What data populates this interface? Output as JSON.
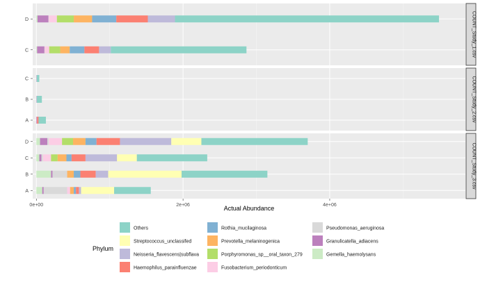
{
  "chart_data": {
    "type": "bar",
    "orientation": "horizontal",
    "stacked": true,
    "xlabel": "Actual Abundance",
    "x_ticks": [
      {
        "value": 0,
        "label": "0e+00"
      },
      {
        "value": 2000000,
        "label": "2e+06"
      },
      {
        "value": 4000000,
        "label": "4e+06"
      }
    ],
    "xlim": [
      -50000,
      5850000
    ],
    "grid": true,
    "legend_title": "Phylum",
    "legend_position": "bottom",
    "taxa": [
      {
        "name": "Gemella_haemolysans",
        "color": "#ccebc5"
      },
      {
        "name": "Granulicatella_adiacens",
        "color": "#bc80bd"
      },
      {
        "name": "Pseudomonas_aeruginosa",
        "color": "#d9d9d9"
      },
      {
        "name": "Fusobacterium_periodonticum",
        "color": "#fccde5"
      },
      {
        "name": "Porphyromonas_sp__oral_taxon_279",
        "color": "#b3de69"
      },
      {
        "name": "Prevotella_melaninogenica",
        "color": "#fdb462"
      },
      {
        "name": "Rothia_mucilaginosa",
        "color": "#80b1d3"
      },
      {
        "name": "Haemophilus_parainfluenzae",
        "color": "#fb8072"
      },
      {
        "name": "Neisseria_flavescens|subflava",
        "color": "#bebada"
      },
      {
        "name": "Streptococcus_unclassifed",
        "color": "#ffffb3"
      },
      {
        "name": "Others",
        "color": "#8dd3c7"
      }
    ],
    "legend_columns": [
      [
        "Others",
        "Streptococcus_unclassifed",
        "Neisseria_flavescens|subflava",
        "Haemophilus_parainfluenzae"
      ],
      [
        "Rothia_mucilaginosa",
        "Prevotella_melaninogenica",
        "Porphyromonas_sp__oral_taxon_279",
        "Fusobacterium_periodonticum"
      ],
      [
        "Pseudomonas_aeruginosa",
        "Granulicatella_adiacens",
        "Gemella_haemolysans"
      ]
    ],
    "panels": [
      {
        "label": "COUNT_Study_1.csv",
        "categories": [
          "C",
          "D"
        ],
        "bars": {
          "D": {
            "Gemella_haemolysans": 15000,
            "Granulicatella_adiacens": 150000,
            "Pseudomonas_aeruginosa": 5000,
            "Fusobacterium_periodonticum": 110000,
            "Porphyromonas_sp__oral_taxon_279": 230000,
            "Prevotella_melaninogenica": 250000,
            "Rothia_mucilaginosa": 330000,
            "Haemophilus_parainfluenzae": 430000,
            "Neisseria_flavescens|subflava": 370000,
            "Streptococcus_unclassifed": 0,
            "Others": 3600000
          },
          "C": {
            "Gemella_haemolysans": 10000,
            "Granulicatella_adiacens": 100000,
            "Pseudomonas_aeruginosa": 5000,
            "Fusobacterium_periodonticum": 60000,
            "Porphyromonas_sp__oral_taxon_279": 150000,
            "Prevotella_melaninogenica": 130000,
            "Rothia_mucilaginosa": 200000,
            "Haemophilus_parainfluenzae": 200000,
            "Neisseria_flavescens|subflava": 160000,
            "Streptococcus_unclassifed": 0,
            "Others": 1850000
          }
        }
      },
      {
        "label": "COUNT_Study_2.csv",
        "categories": [
          "A",
          "B",
          "C"
        ],
        "bars": {
          "C": {
            "Granulicatella_adiacens": 5000,
            "Others": 35000
          },
          "B": {
            "Granulicatella_adiacens": 5000,
            "Others": 70000
          },
          "A": {
            "Granulicatella_adiacens": 10000,
            "Haemophilus_parainfluenzae": 20000,
            "Others": 100000
          }
        }
      },
      {
        "label": "COUNT_Study_3.csv",
        "categories": [
          "A",
          "B",
          "C",
          "D"
        ],
        "bars": {
          "D": {
            "Gemella_haemolysans": 50000,
            "Granulicatella_adiacens": 100000,
            "Pseudomonas_aeruginosa": 20000,
            "Fusobacterium_periodonticum": 180000,
            "Porphyromonas_sp__oral_taxon_279": 150000,
            "Prevotella_melaninogenica": 170000,
            "Rothia_mucilaginosa": 150000,
            "Haemophilus_parainfluenzae": 320000,
            "Neisseria_flavescens|subflava": 700000,
            "Streptococcus_unclassifed": 410000,
            "Others": 1450000
          },
          "C": {
            "Gemella_haemolysans": 40000,
            "Granulicatella_adiacens": 30000,
            "Pseudomonas_aeruginosa": 20000,
            "Fusobacterium_periodonticum": 110000,
            "Porphyromonas_sp__oral_taxon_279": 90000,
            "Prevotella_melaninogenica": 120000,
            "Rothia_mucilaginosa": 70000,
            "Haemophilus_parainfluenzae": 190000,
            "Neisseria_flavescens|subflava": 430000,
            "Streptococcus_unclassifed": 270000,
            "Others": 960000
          },
          "B": {
            "Gemella_haemolysans": 200000,
            "Granulicatella_adiacens": 20000,
            "Pseudomonas_aeruginosa": 200000,
            "Fusobacterium_periodonticum": 0,
            "Porphyromonas_sp__oral_taxon_279": 0,
            "Prevotella_melaninogenica": 90000,
            "Rothia_mucilaginosa": 90000,
            "Haemophilus_parainfluenzae": 210000,
            "Neisseria_flavescens|subflava": 170000,
            "Streptococcus_unclassifed": 1000000,
            "Others": 1170000
          },
          "A": {
            "Gemella_haemolysans": 80000,
            "Granulicatella_adiacens": 20000,
            "Pseudomonas_aeruginosa": 320000,
            "Fusobacterium_periodonticum": 40000,
            "Porphyromonas_sp__oral_taxon_279": 0,
            "Prevotella_melaninogenica": 50000,
            "Rothia_mucilaginosa": 30000,
            "Haemophilus_parainfluenzae": 40000,
            "Neisseria_flavescens|subflava": 30000,
            "Streptococcus_unclassifed": 450000,
            "Others": 500000
          }
        }
      }
    ]
  }
}
